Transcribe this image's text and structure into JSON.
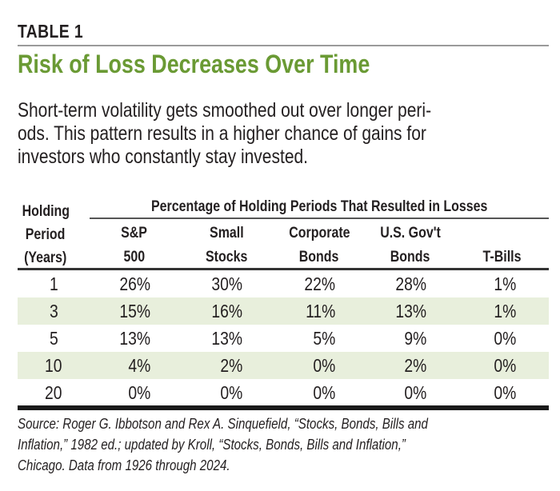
{
  "label": "TABLE 1",
  "title": "Risk of Loss Decreases Over Time",
  "intro_lines": [
    "Short-term volatility gets smoothed out over longer peri-",
    "ods. This pattern results in a higher chance of gains for",
    "investors who constantly stay invested."
  ],
  "table": {
    "group_header": "Percentage of Holding Periods That Resulted in Losses",
    "row_header": [
      "Holding",
      "Period",
      "(Years)"
    ],
    "columns": [
      [
        "S&P",
        "500"
      ],
      [
        "Small",
        "Stocks"
      ],
      [
        "Corporate",
        "Bonds"
      ],
      [
        "U.S. Gov't",
        "Bonds"
      ],
      [
        "",
        "T-Bills"
      ]
    ],
    "rows": [
      {
        "period": "1",
        "values": [
          "26%",
          "30%",
          "22%",
          "28%",
          "1%"
        ]
      },
      {
        "period": "3",
        "values": [
          "15%",
          "16%",
          "11%",
          "13%",
          "1%"
        ]
      },
      {
        "period": "5",
        "values": [
          "13%",
          "13%",
          "5%",
          "9%",
          "0%"
        ]
      },
      {
        "period": "10",
        "values": [
          "4%",
          "2%",
          "0%",
          "2%",
          "0%"
        ]
      },
      {
        "period": "20",
        "values": [
          "0%",
          "0%",
          "0%",
          "0%",
          "0%"
        ]
      }
    ],
    "shade_color": "#e8efdc"
  },
  "source_lines": [
    "Source: Roger G. Ibbotson and Rex A. Sinquefield, “Stocks, Bonds, Bills and",
    "Inflation,” 1982 ed.; updated by Kroll, “Stocks, Bonds, Bills and Inflation,”",
    "Chicago. Data from 1926 through 2024."
  ],
  "colors": {
    "title": "#6a9a34",
    "text": "#231f20"
  }
}
